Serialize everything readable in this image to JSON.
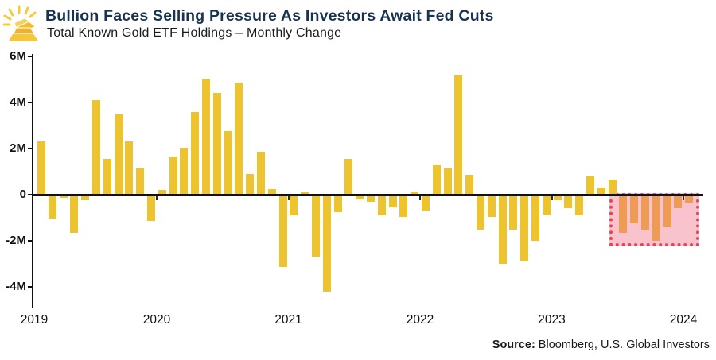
{
  "header": {
    "title": "Bullion Faces Selling Pressure As Investors Await Fed Cuts",
    "subtitle": "Total Known Gold ETF Holdings – Monthly Change",
    "icon": "gold-bullion-bars-icon"
  },
  "source": {
    "label": "Source:",
    "text": " Bloomberg, U.S. Global Investors"
  },
  "colors": {
    "bar": "#EDC32F",
    "highlight_bar": "#EE9B55",
    "highlight_fill": "#F9C3CD",
    "highlight_border": "#E94257",
    "title": "#17334F",
    "axis": "#111111"
  },
  "chart_data": {
    "type": "bar",
    "title": "Bullion Faces Selling Pressure As Investors Await Fed Cuts",
    "subtitle": "Total Known Gold ETF Holdings – Monthly Change",
    "xlabel": "",
    "ylabel": "",
    "unit": "M",
    "ylim": [
      -4.9,
      6.1
    ],
    "grid": false,
    "legend": "none",
    "yticks": [
      {
        "label": "6M",
        "value": 6
      },
      {
        "label": "4M",
        "value": 4
      },
      {
        "label": "2M",
        "value": 2
      },
      {
        "label": "0",
        "value": 0
      },
      {
        "label": "-2M",
        "value": -2
      },
      {
        "label": "-4M",
        "value": -4
      }
    ],
    "xticks": [
      "2019",
      "2020",
      "2021",
      "2022",
      "2023",
      "2024"
    ],
    "months": [
      "2019-02",
      "2019-03",
      "2019-04",
      "2019-05",
      "2019-06",
      "2019-07",
      "2019-08",
      "2019-09",
      "2019-10",
      "2019-11",
      "2019-12",
      "2020-01",
      "2020-02",
      "2020-03",
      "2020-04",
      "2020-05",
      "2020-06",
      "2020-07",
      "2020-08",
      "2020-09",
      "2020-10",
      "2020-11",
      "2020-12",
      "2021-01",
      "2021-02",
      "2021-03",
      "2021-04",
      "2021-05",
      "2021-06",
      "2021-07",
      "2021-08",
      "2021-09",
      "2021-10",
      "2021-11",
      "2021-12",
      "2022-01",
      "2022-02",
      "2022-03",
      "2022-04",
      "2022-05",
      "2022-06",
      "2022-07",
      "2022-08",
      "2022-09",
      "2022-10",
      "2022-11",
      "2022-12",
      "2023-01",
      "2023-02",
      "2023-03",
      "2023-04",
      "2023-05",
      "2023-06",
      "2023-07",
      "2023-08",
      "2023-09",
      "2023-10",
      "2023-11",
      "2023-12",
      "2024-01"
    ],
    "values": [
      2.3,
      -1.05,
      -0.15,
      -1.65,
      -0.25,
      4.1,
      1.55,
      3.5,
      2.3,
      1.15,
      -1.15,
      0.2,
      1.65,
      2.05,
      3.6,
      5.05,
      4.4,
      2.75,
      4.85,
      0.9,
      1.85,
      0.25,
      -3.15,
      -0.9,
      0.1,
      -2.7,
      -4.2,
      -0.75,
      1.55,
      -0.2,
      -0.3,
      -0.9,
      -0.55,
      -0.95,
      0.15,
      -0.7,
      1.3,
      1.15,
      5.2,
      0.85,
      -1.5,
      -0.95,
      -3.0,
      -1.5,
      -2.85,
      -2.0,
      -0.85,
      -0.25,
      -0.6,
      -0.9,
      0.8,
      0.3,
      0.65,
      -1.65,
      -1.25,
      -1.55,
      -2.0,
      -1.4,
      -0.6,
      -0.35
    ],
    "highlight": {
      "style": "pink-dotted-box",
      "from_index": 53,
      "from_month": "2023-07",
      "to_month": "2024-01"
    }
  }
}
